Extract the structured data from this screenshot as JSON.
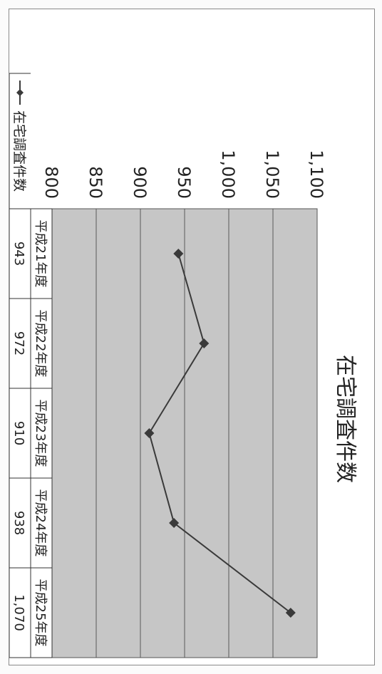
{
  "chart_data": {
    "type": "line",
    "title": "在宅調査件数",
    "categories": [
      "平成21年度",
      "平成22年度",
      "平成23年度",
      "平成24年度",
      "平成25年度"
    ],
    "series": [
      {
        "name": "在宅調査件数",
        "values": [
          943,
          972,
          910,
          938,
          1070
        ]
      }
    ],
    "ylim": [
      800,
      1100
    ],
    "yticks": [
      "800",
      "850",
      "900",
      "950",
      "1,000",
      "1,050",
      "1,100"
    ],
    "value_labels": [
      "943",
      "972",
      "910",
      "938",
      "1,070"
    ],
    "orientation": "rotated-90-clockwise",
    "grid": true,
    "legend": "data-table",
    "colors": {
      "plot_bg": "#c6c6c6",
      "line": "#3a3a3a",
      "marker": "#3a3a3a"
    }
  }
}
